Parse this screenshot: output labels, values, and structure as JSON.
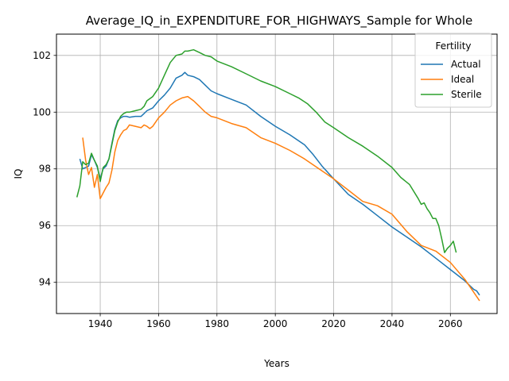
{
  "chart_data": {
    "type": "line",
    "title": "Average_IQ_in_EXPENDITURE_FOR_HIGHWAYS_Sample for Whole",
    "xlabel": "Years",
    "ylabel": "IQ",
    "xlim": [
      1925,
      2076
    ],
    "ylim": [
      92.9,
      102.75
    ],
    "x_ticks": [
      1940,
      1960,
      1980,
      2000,
      2020,
      2040,
      2060
    ],
    "y_ticks": [
      94,
      96,
      98,
      100,
      102
    ],
    "x_tick_labels": [
      "1940",
      "1960",
      "1980",
      "2000",
      "2020",
      "2040",
      "2060"
    ],
    "y_tick_labels": [
      "94",
      "96",
      "98",
      "100",
      "102"
    ],
    "grid": true,
    "legend": {
      "title": "Fertility",
      "position": "top-right"
    },
    "series": [
      {
        "name": "Actual",
        "color": "#1f77b4",
        "x": [
          1933,
          1934,
          1935,
          1936,
          1937,
          1938,
          1939,
          1940,
          1941,
          1942,
          1943,
          1944,
          1945,
          1946,
          1947,
          1948,
          1949,
          1950,
          1952,
          1954,
          1955,
          1956,
          1958,
          1960,
          1962,
          1964,
          1966,
          1968,
          1969,
          1970,
          1972,
          1974,
          1976,
          1978,
          1980,
          1985,
          1990,
          1995,
          2000,
          2005,
          2010,
          2013,
          2016,
          2020,
          2025,
          2030,
          2035,
          2040,
          2045,
          2050,
          2055,
          2060,
          2065,
          2068,
          2069,
          2070
        ],
        "y": [
          98.35,
          98.0,
          98.05,
          98.1,
          98.5,
          98.3,
          98.05,
          97.65,
          98.0,
          98.1,
          98.35,
          98.9,
          99.4,
          99.7,
          99.8,
          99.85,
          99.85,
          99.82,
          99.85,
          99.85,
          99.95,
          100.05,
          100.15,
          100.4,
          100.6,
          100.85,
          101.2,
          101.3,
          101.4,
          101.3,
          101.25,
          101.15,
          100.95,
          100.75,
          100.65,
          100.45,
          100.25,
          99.85,
          99.5,
          99.2,
          98.85,
          98.5,
          98.1,
          97.65,
          97.1,
          96.75,
          96.35,
          95.95,
          95.6,
          95.25,
          94.85,
          94.45,
          94.05,
          93.75,
          93.7,
          93.55
        ]
      },
      {
        "name": "Ideal",
        "color": "#ff7f0e",
        "x": [
          1934,
          1935,
          1936,
          1937,
          1938,
          1939,
          1940,
          1941,
          1942,
          1943,
          1944,
          1945,
          1946,
          1947,
          1948,
          1949,
          1950,
          1952,
          1954,
          1955,
          1956,
          1957,
          1958,
          1960,
          1962,
          1964,
          1966,
          1968,
          1970,
          1972,
          1974,
          1976,
          1978,
          1980,
          1985,
          1990,
          1995,
          2000,
          2005,
          2010,
          2015,
          2020,
          2025,
          2030,
          2035,
          2040,
          2045,
          2050,
          2055,
          2060,
          2065,
          2070
        ],
        "y": [
          99.1,
          98.3,
          97.8,
          98.05,
          97.35,
          97.8,
          96.95,
          97.15,
          97.35,
          97.5,
          97.95,
          98.6,
          99.0,
          99.2,
          99.35,
          99.4,
          99.55,
          99.5,
          99.45,
          99.55,
          99.5,
          99.42,
          99.5,
          99.8,
          100.0,
          100.25,
          100.4,
          100.5,
          100.55,
          100.4,
          100.2,
          100.0,
          99.85,
          99.8,
          99.6,
          99.45,
          99.1,
          98.9,
          98.65,
          98.35,
          98.0,
          97.65,
          97.25,
          96.85,
          96.7,
          96.4,
          95.8,
          95.3,
          95.1,
          94.7,
          94.1,
          93.35
        ]
      },
      {
        "name": "Sterile",
        "color": "#2ca02c",
        "x": [
          1932,
          1933,
          1934,
          1935,
          1936,
          1937,
          1938,
          1939,
          1940,
          1941,
          1942,
          1943,
          1944,
          1945,
          1946,
          1947,
          1948,
          1949,
          1950,
          1952,
          1954,
          1955,
          1956,
          1958,
          1960,
          1962,
          1964,
          1966,
          1968,
          1969,
          1970,
          1972,
          1974,
          1976,
          1978,
          1980,
          1985,
          1990,
          1995,
          2000,
          2005,
          2008,
          2011,
          2014,
          2017,
          2020,
          2025,
          2030,
          2035,
          2040,
          2043,
          2046,
          2049,
          2050,
          2051,
          2052,
          2053,
          2054,
          2055,
          2056,
          2057,
          2058,
          2059,
          2060,
          2061,
          2062
        ],
        "y": [
          97.0,
          97.4,
          98.25,
          98.15,
          98.2,
          98.55,
          98.3,
          98.1,
          97.55,
          98.05,
          98.15,
          98.35,
          98.85,
          99.35,
          99.65,
          99.85,
          99.95,
          100.0,
          100.0,
          100.05,
          100.1,
          100.2,
          100.4,
          100.55,
          100.85,
          101.3,
          101.75,
          102.0,
          102.05,
          102.15,
          102.15,
          102.2,
          102.1,
          102.0,
          101.95,
          101.8,
          101.6,
          101.35,
          101.1,
          100.9,
          100.65,
          100.5,
          100.3,
          100.0,
          99.65,
          99.45,
          99.1,
          98.8,
          98.45,
          98.05,
          97.7,
          97.45,
          96.95,
          96.75,
          96.8,
          96.6,
          96.45,
          96.25,
          96.25,
          96.0,
          95.55,
          95.05,
          95.2,
          95.3,
          95.45,
          95.05
        ]
      }
    ]
  }
}
